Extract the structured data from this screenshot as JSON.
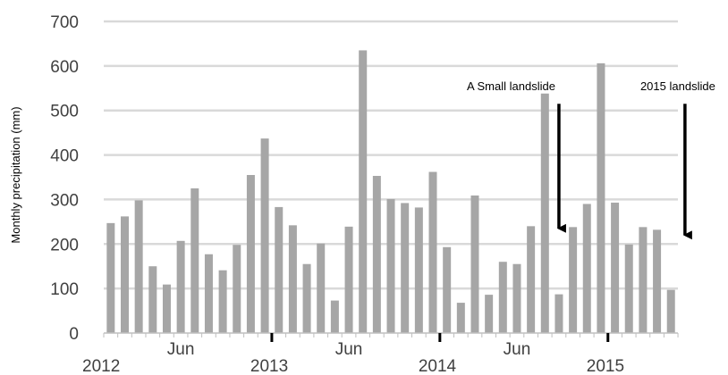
{
  "chart_data": {
    "type": "bar",
    "ylabel": "Monthly precipitation (mm)",
    "ylim": [
      0,
      700
    ],
    "yticks": [
      0,
      100,
      200,
      300,
      400,
      500,
      600,
      700
    ],
    "grid": true,
    "bar_color": "#a6a6a6",
    "grid_color": "#d9d9d9",
    "x_axis": {
      "month_labels": [
        {
          "label": "Jun",
          "month_index": 5
        },
        {
          "label": "Jun",
          "month_index": 17
        },
        {
          "label": "Jun",
          "month_index": 29
        }
      ],
      "year_labels": [
        {
          "label": "2012",
          "month_index": 0
        },
        {
          "label": "2013",
          "month_index": 12
        },
        {
          "label": "2014",
          "month_index": 24
        },
        {
          "label": "2015",
          "month_index": 36
        }
      ]
    },
    "x": [
      "2012-01",
      "2012-02",
      "2012-03",
      "2012-04",
      "2012-05",
      "2012-06",
      "2012-07",
      "2012-08",
      "2012-09",
      "2012-10",
      "2012-11",
      "2012-12",
      "2013-01",
      "2013-02",
      "2013-03",
      "2013-04",
      "2013-05",
      "2013-06",
      "2013-07",
      "2013-08",
      "2013-09",
      "2013-10",
      "2013-11",
      "2013-12",
      "2014-01",
      "2014-02",
      "2014-03",
      "2014-04",
      "2014-05",
      "2014-06",
      "2014-07",
      "2014-08",
      "2014-09",
      "2014-10",
      "2014-11",
      "2014-12",
      "2015-01",
      "2015-02",
      "2015-03",
      "2015-04",
      "2015-05"
    ],
    "values": [
      247,
      262,
      298,
      150,
      109,
      207,
      325,
      177,
      141,
      198,
      355,
      437,
      283,
      242,
      155,
      201,
      73,
      239,
      635,
      353,
      301,
      292,
      282,
      362,
      193,
      68,
      309,
      86,
      160,
      155,
      240,
      538,
      87,
      238,
      290,
      606,
      293,
      199,
      238,
      232,
      97
    ],
    "annotations": [
      {
        "text": "A Small landslide",
        "month_index": 32,
        "arrow_from": 515,
        "arrow_to": 215
      },
      {
        "text": "2015 landslide",
        "month_index": 41,
        "arrow_from": 515,
        "arrow_to": 200
      }
    ]
  }
}
